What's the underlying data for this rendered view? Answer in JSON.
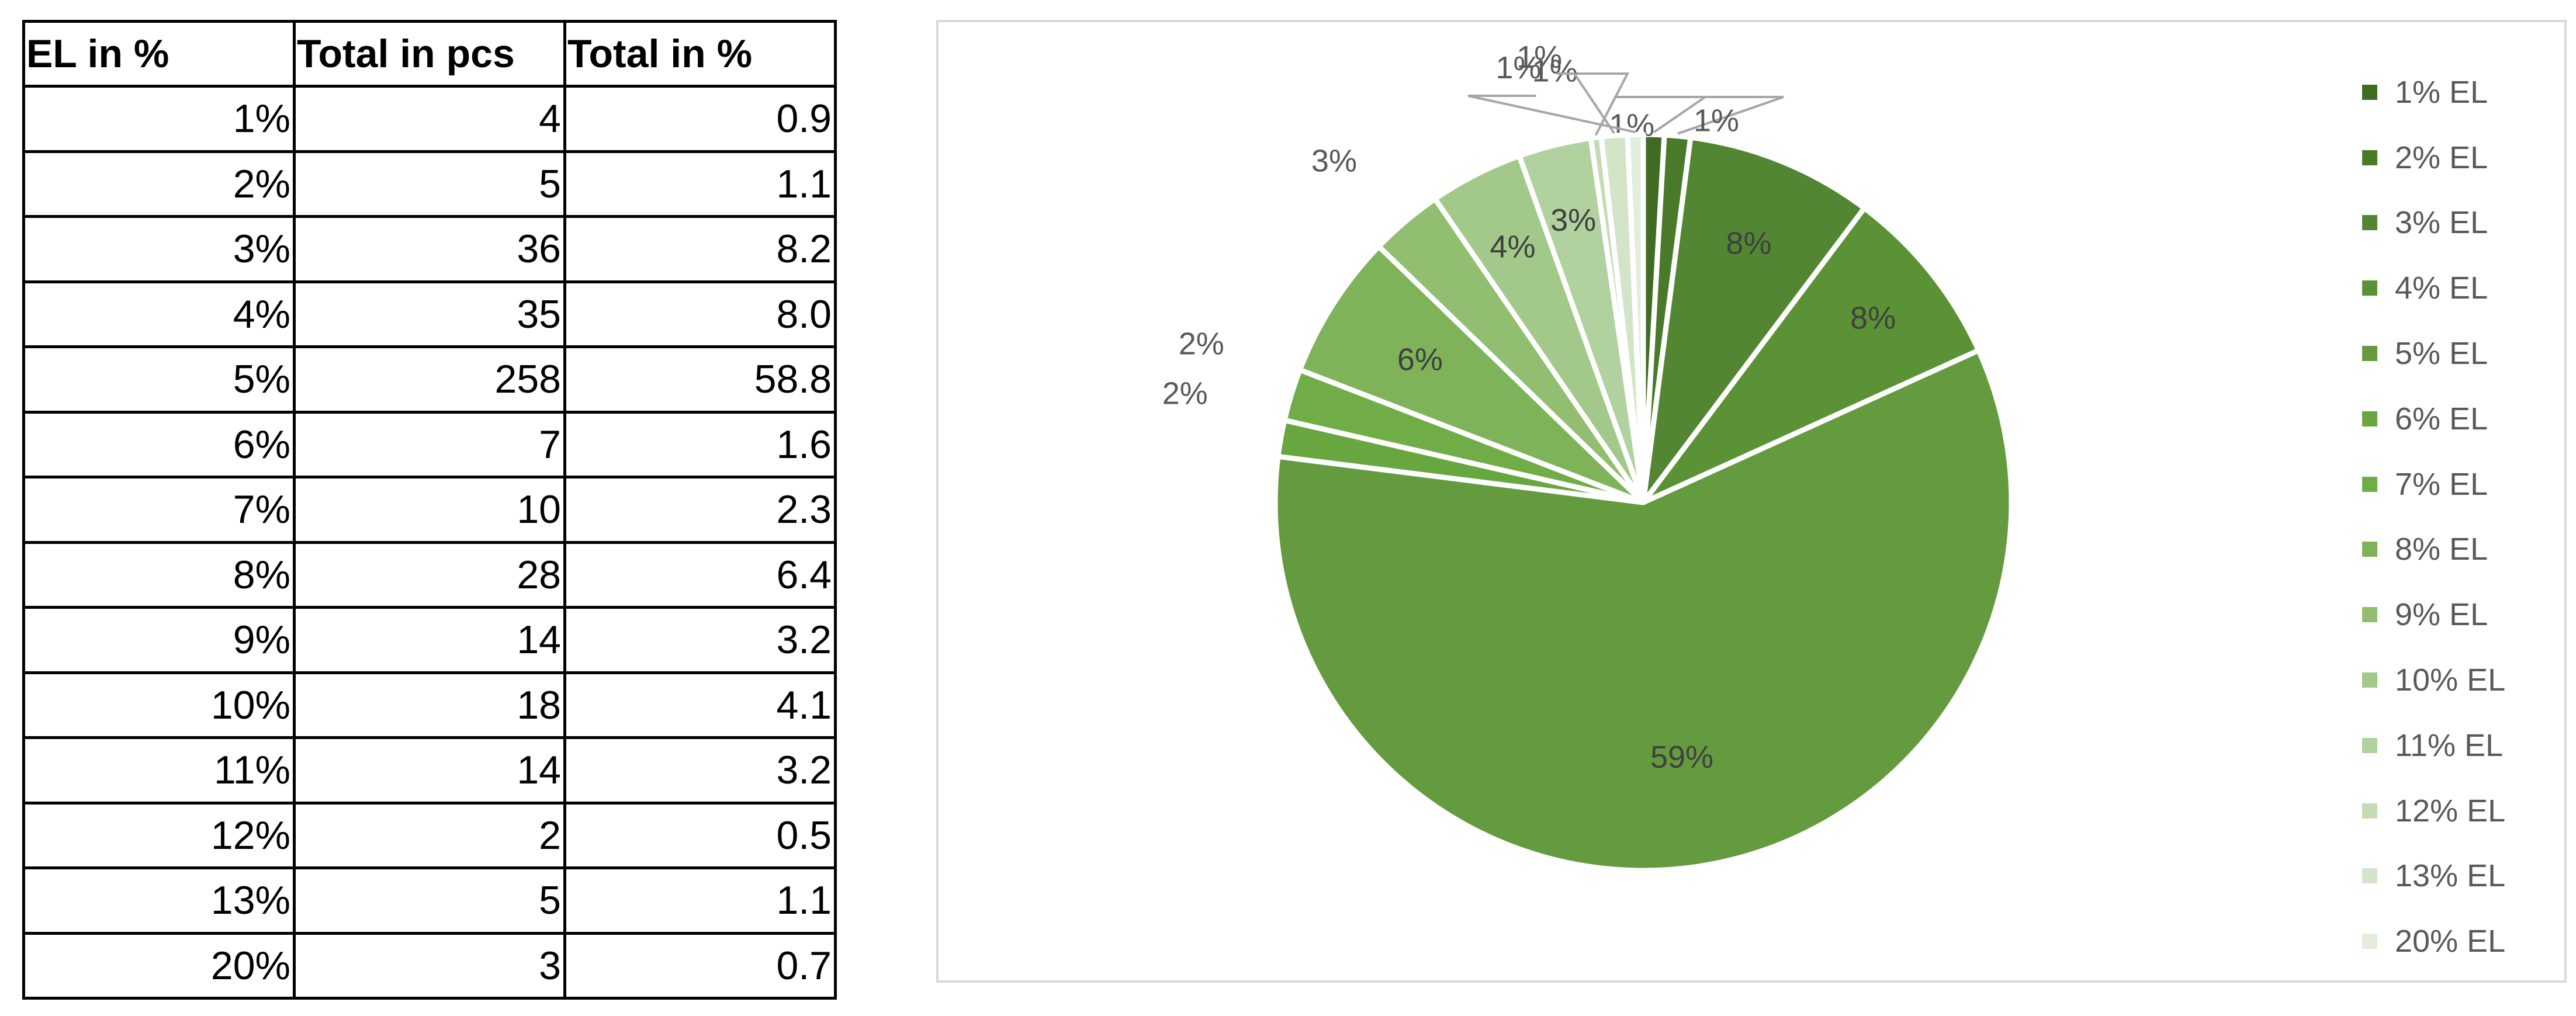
{
  "table": {
    "headers": [
      "EL in %",
      "Total in pcs",
      "Total in %"
    ],
    "rows": [
      [
        "1%",
        "4",
        "0.9"
      ],
      [
        "2%",
        "5",
        "1.1"
      ],
      [
        "3%",
        "36",
        "8.2"
      ],
      [
        "4%",
        "35",
        "8.0"
      ],
      [
        "5%",
        "258",
        "58.8"
      ],
      [
        "6%",
        "7",
        "1.6"
      ],
      [
        "7%",
        "10",
        "2.3"
      ],
      [
        "8%",
        "28",
        "6.4"
      ],
      [
        "9%",
        "14",
        "3.2"
      ],
      [
        "10%",
        "18",
        "4.1"
      ],
      [
        "11%",
        "14",
        "3.2"
      ],
      [
        "12%",
        "2",
        "0.5"
      ],
      [
        "13%",
        "5",
        "1.1"
      ],
      [
        "20%",
        "3",
        "0.7"
      ]
    ]
  },
  "chart_data": {
    "type": "pie",
    "categories": [
      "1% EL",
      "2% EL",
      "3% EL",
      "4% EL",
      "5% EL",
      "6% EL",
      "7% EL",
      "8% EL",
      "9% EL",
      "10% EL",
      "11% EL",
      "12% EL",
      "13% EL",
      "20% EL"
    ],
    "values": [
      4,
      5,
      36,
      35,
      258,
      7,
      10,
      28,
      14,
      18,
      14,
      2,
      5,
      3
    ],
    "data_labels": [
      "1%",
      "1%",
      "8%",
      "8%",
      "59%",
      "2%",
      "2%",
      "6%",
      "3%",
      "4%",
      "3%",
      "1%",
      "1%",
      "1%"
    ],
    "colors": [
      "#3f6b23",
      "#4a7a29",
      "#538632",
      "#5a9235",
      "#639b3e",
      "#68a63f",
      "#70ad47",
      "#7fb35a",
      "#91be70",
      "#a2c98a",
      "#b1d19e",
      "#c3dcb5",
      "#d3e5c9",
      "#e2eedb"
    ],
    "legend_position": "right",
    "start_angle": "12 o'clock, clockwise"
  }
}
